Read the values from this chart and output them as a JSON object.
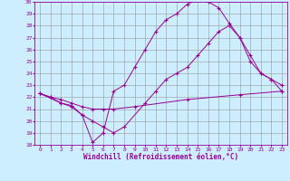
{
  "xlabel": "Windchill (Refroidissement éolien,°C)",
  "bg_color": "#cceeff",
  "line_color": "#990099",
  "grid_color": "#999999",
  "ylim": [
    18,
    30
  ],
  "xlim": [
    -0.5,
    23.5
  ],
  "yticks": [
    18,
    19,
    20,
    21,
    22,
    23,
    24,
    25,
    26,
    27,
    28,
    29,
    30
  ],
  "xticks": [
    0,
    1,
    2,
    3,
    4,
    5,
    6,
    7,
    8,
    9,
    10,
    11,
    12,
    13,
    14,
    15,
    16,
    17,
    18,
    19,
    20,
    21,
    22,
    23
  ],
  "line1_x": [
    0,
    1,
    2,
    3,
    4,
    5,
    6,
    7,
    9,
    14,
    19,
    23
  ],
  "line1_y": [
    22.3,
    22.0,
    21.8,
    21.5,
    21.2,
    21.0,
    21.0,
    21.0,
    21.2,
    21.8,
    22.2,
    22.5
  ],
  "line2_x": [
    0,
    2,
    3,
    4,
    5,
    6,
    7,
    8,
    10,
    11,
    12,
    13,
    14,
    15,
    16,
    17,
    18,
    19,
    20,
    21,
    22,
    23
  ],
  "line2_y": [
    22.3,
    21.5,
    21.3,
    20.5,
    20.0,
    19.5,
    19.0,
    19.5,
    21.5,
    22.5,
    23.5,
    24.0,
    24.5,
    25.5,
    26.5,
    27.5,
    28.0,
    27.0,
    25.0,
    24.0,
    23.5,
    22.5
  ],
  "line3_x": [
    0,
    1,
    2,
    3,
    4,
    5,
    6,
    7,
    8,
    9,
    10,
    11,
    12,
    13,
    14,
    15,
    16,
    17,
    18,
    19,
    20,
    21,
    22,
    23
  ],
  "line3_y": [
    22.3,
    22.0,
    21.5,
    21.2,
    20.5,
    18.2,
    19.0,
    22.5,
    23.0,
    24.5,
    26.0,
    27.5,
    28.5,
    29.0,
    29.8,
    30.2,
    30.0,
    29.5,
    28.2,
    27.0,
    25.5,
    24.0,
    23.5,
    23.0
  ]
}
